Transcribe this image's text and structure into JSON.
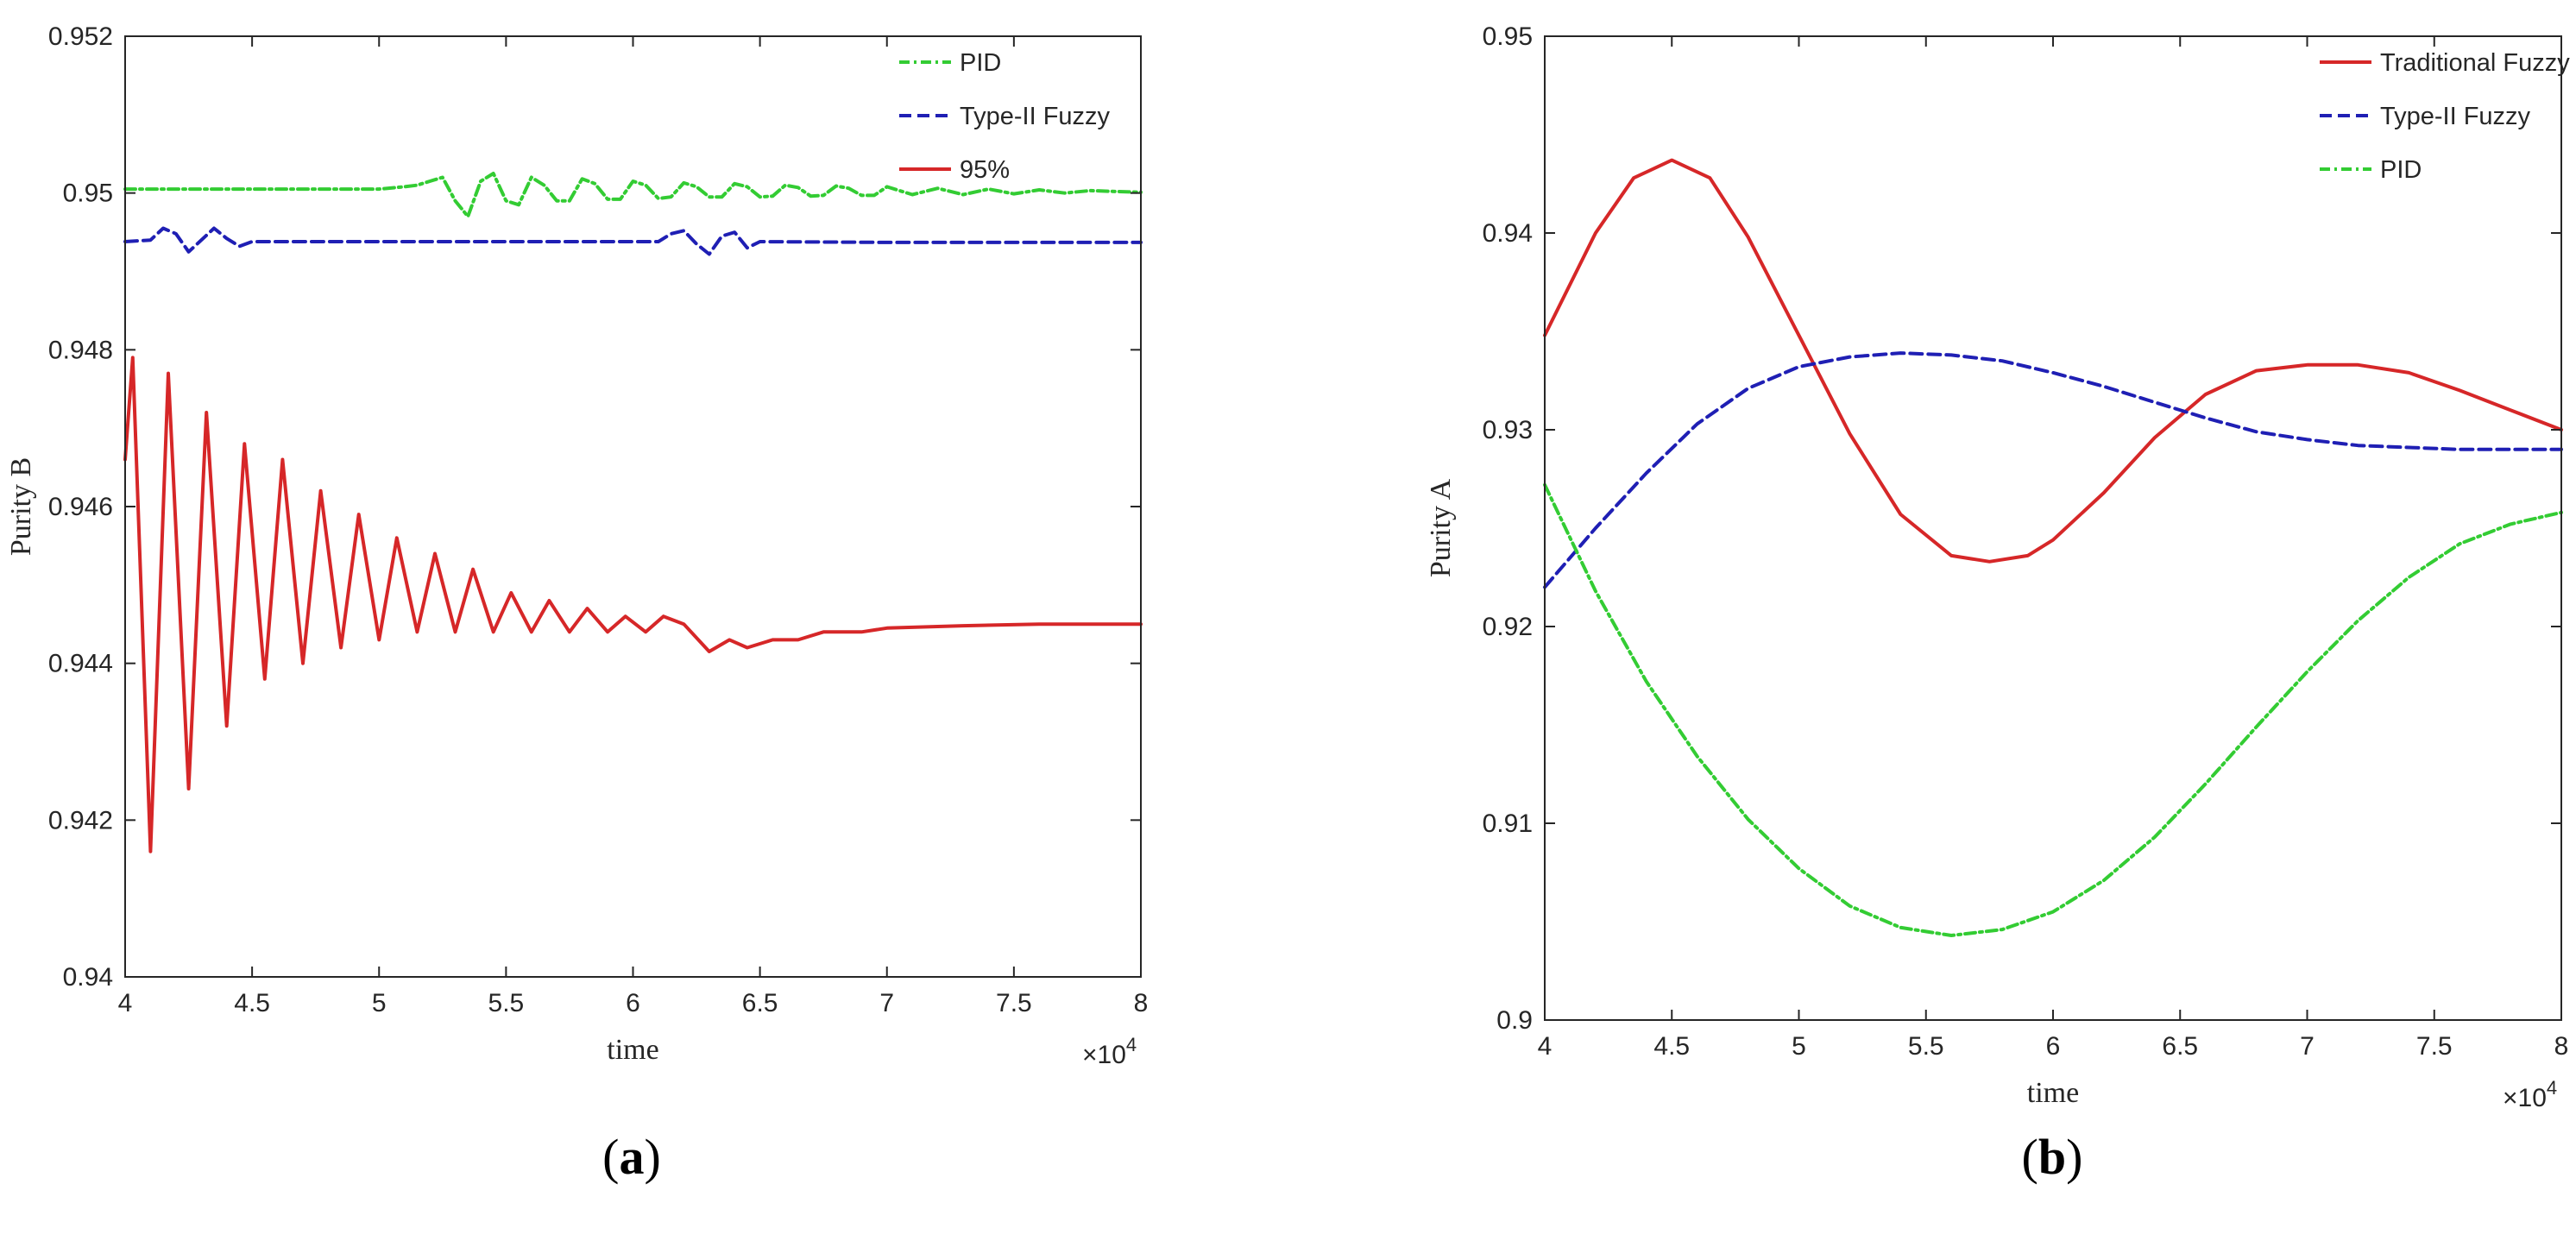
{
  "chart_data": [
    {
      "type": "line",
      "panel": "a",
      "caption_open": "(",
      "caption_letter": "a",
      "caption_close": ")",
      "xlabel": "time",
      "ylabel": "Purity B",
      "x_exponent_base": "×10",
      "x_exponent_power": "4",
      "xlim": [
        4,
        8
      ],
      "ylim": [
        0.94,
        0.952
      ],
      "xticks": [
        4,
        4.5,
        5,
        5.5,
        6,
        6.5,
        7,
        7.5,
        8
      ],
      "xtick_labels": [
        "4",
        "4.5",
        "5",
        "5.5",
        "6",
        "6.5",
        "7",
        "7.5",
        "8"
      ],
      "yticks": [
        0.94,
        0.942,
        0.944,
        0.946,
        0.948,
        0.95,
        0.952
      ],
      "ytick_labels": [
        "0.94",
        "0.942",
        "0.944",
        "0.946",
        "0.948",
        "0.95",
        "0.952"
      ],
      "legend_location": "top-right",
      "series": [
        {
          "name": "PID",
          "color": "#33cc33",
          "style": "dash-dot",
          "points": [
            [
              4.0,
              0.95005
            ],
            [
              4.5,
              0.95005
            ],
            [
              5.0,
              0.95005
            ],
            [
              5.1,
              0.95008
            ],
            [
              5.15,
              0.9501
            ],
            [
              5.2,
              0.95015
            ],
            [
              5.25,
              0.9502
            ],
            [
              5.3,
              0.9499
            ],
            [
              5.35,
              0.9497
            ],
            [
              5.4,
              0.95015
            ],
            [
              5.45,
              0.95025
            ],
            [
              5.5,
              0.9499
            ],
            [
              5.55,
              0.94985
            ],
            [
              5.6,
              0.9502
            ],
            [
              5.65,
              0.9501
            ],
            [
              5.7,
              0.9499
            ],
            [
              5.75,
              0.9499
            ],
            [
              5.8,
              0.95018
            ],
            [
              5.85,
              0.95012
            ],
            [
              5.9,
              0.94992
            ],
            [
              5.95,
              0.94992
            ],
            [
              6.0,
              0.95015
            ],
            [
              6.05,
              0.9501
            ],
            [
              6.1,
              0.94993
            ],
            [
              6.15,
              0.94995
            ],
            [
              6.2,
              0.95013
            ],
            [
              6.25,
              0.95008
            ],
            [
              6.3,
              0.94995
            ],
            [
              6.35,
              0.94995
            ],
            [
              6.4,
              0.95012
            ],
            [
              6.45,
              0.95008
            ],
            [
              6.5,
              0.94995
            ],
            [
              6.55,
              0.94996
            ],
            [
              6.6,
              0.9501
            ],
            [
              6.65,
              0.95007
            ],
            [
              6.7,
              0.94996
            ],
            [
              6.75,
              0.94997
            ],
            [
              6.8,
              0.95009
            ],
            [
              6.85,
              0.95006
            ],
            [
              6.9,
              0.94997
            ],
            [
              6.95,
              0.94997
            ],
            [
              7.0,
              0.95008
            ],
            [
              7.1,
              0.94998
            ],
            [
              7.2,
              0.95006
            ],
            [
              7.3,
              0.94998
            ],
            [
              7.4,
              0.95005
            ],
            [
              7.5,
              0.94999
            ],
            [
              7.6,
              0.95004
            ],
            [
              7.7,
              0.95
            ],
            [
              7.8,
              0.95003
            ],
            [
              8.0,
              0.95001
            ]
          ]
        },
        {
          "name": "Type-II Fuzzy",
          "color": "#1f1fb4",
          "style": "dashed",
          "points": [
            [
              4.0,
              0.94938
            ],
            [
              4.1,
              0.9494
            ],
            [
              4.15,
              0.94955
            ],
            [
              4.2,
              0.94948
            ],
            [
              4.25,
              0.94925
            ],
            [
              4.3,
              0.9494
            ],
            [
              4.35,
              0.94955
            ],
            [
              4.4,
              0.94942
            ],
            [
              4.45,
              0.94932
            ],
            [
              4.5,
              0.94938
            ],
            [
              5.0,
              0.94938
            ],
            [
              5.5,
              0.94938
            ],
            [
              6.0,
              0.94938
            ],
            [
              6.1,
              0.94938
            ],
            [
              6.15,
              0.94948
            ],
            [
              6.2,
              0.94952
            ],
            [
              6.25,
              0.94935
            ],
            [
              6.3,
              0.94922
            ],
            [
              6.35,
              0.94945
            ],
            [
              6.4,
              0.9495
            ],
            [
              6.45,
              0.9493
            ],
            [
              6.5,
              0.94938
            ],
            [
              7.0,
              0.94937
            ],
            [
              7.5,
              0.94937
            ],
            [
              8.0,
              0.94937
            ]
          ]
        },
        {
          "name": "95%",
          "color": "#d62728",
          "style": "solid",
          "points": [
            [
              4.0,
              0.9466
            ],
            [
              4.03,
              0.9479
            ],
            [
              4.1,
              0.9416
            ],
            [
              4.17,
              0.9477
            ],
            [
              4.25,
              0.9424
            ],
            [
              4.32,
              0.9472
            ],
            [
              4.4,
              0.9432
            ],
            [
              4.47,
              0.9468
            ],
            [
              4.55,
              0.9438
            ],
            [
              4.62,
              0.9466
            ],
            [
              4.7,
              0.944
            ],
            [
              4.77,
              0.9462
            ],
            [
              4.85,
              0.9442
            ],
            [
              4.92,
              0.9459
            ],
            [
              5.0,
              0.9443
            ],
            [
              5.07,
              0.9456
            ],
            [
              5.15,
              0.9444
            ],
            [
              5.22,
              0.9454
            ],
            [
              5.3,
              0.9444
            ],
            [
              5.37,
              0.9452
            ],
            [
              5.45,
              0.9444
            ],
            [
              5.52,
              0.9449
            ],
            [
              5.6,
              0.9444
            ],
            [
              5.67,
              0.9448
            ],
            [
              5.75,
              0.9444
            ],
            [
              5.82,
              0.9447
            ],
            [
              5.9,
              0.9444
            ],
            [
              5.97,
              0.9446
            ],
            [
              6.05,
              0.9444
            ],
            [
              6.12,
              0.9446
            ],
            [
              6.2,
              0.9445
            ],
            [
              6.3,
              0.94415
            ],
            [
              6.38,
              0.9443
            ],
            [
              6.45,
              0.9442
            ],
            [
              6.55,
              0.9443
            ],
            [
              6.65,
              0.9443
            ],
            [
              6.75,
              0.9444
            ],
            [
              6.9,
              0.9444
            ],
            [
              7.0,
              0.94445
            ],
            [
              7.3,
              0.94448
            ],
            [
              7.6,
              0.9445
            ],
            [
              8.0,
              0.9445
            ]
          ]
        }
      ]
    },
    {
      "type": "line",
      "panel": "b",
      "caption_open": "(",
      "caption_letter": "b",
      "caption_close": ")",
      "xlabel": "time",
      "ylabel": "Purity A",
      "x_exponent_base": "×10",
      "x_exponent_power": "4",
      "xlim": [
        4,
        8
      ],
      "ylim": [
        0.9,
        0.95
      ],
      "xticks": [
        4,
        4.5,
        5,
        5.5,
        6,
        6.5,
        7,
        7.5,
        8
      ],
      "xtick_labels": [
        "4",
        "4.5",
        "5",
        "5.5",
        "6",
        "6.5",
        "7",
        "7.5",
        "8"
      ],
      "yticks": [
        0.9,
        0.91,
        0.92,
        0.93,
        0.94,
        0.95
      ],
      "ytick_labels": [
        "0.9",
        "0.91",
        "0.92",
        "0.93",
        "0.94",
        "0.95"
      ],
      "legend_location": "top-right",
      "series": [
        {
          "name": "Traditional Fuzzy",
          "color": "#d62728",
          "style": "solid",
          "points": [
            [
              4.0,
              0.9348
            ],
            [
              4.2,
              0.94
            ],
            [
              4.35,
              0.9428
            ],
            [
              4.5,
              0.9437
            ],
            [
              4.65,
              0.9428
            ],
            [
              4.8,
              0.9398
            ],
            [
              5.0,
              0.9348
            ],
            [
              5.2,
              0.9298
            ],
            [
              5.4,
              0.9257
            ],
            [
              5.6,
              0.9236
            ],
            [
              5.75,
              0.9233
            ],
            [
              5.9,
              0.9236
            ],
            [
              6.0,
              0.9244
            ],
            [
              6.2,
              0.9268
            ],
            [
              6.4,
              0.9296
            ],
            [
              6.6,
              0.9318
            ],
            [
              6.8,
              0.933
            ],
            [
              7.0,
              0.9333
            ],
            [
              7.2,
              0.9333
            ],
            [
              7.4,
              0.9329
            ],
            [
              7.6,
              0.932
            ],
            [
              7.8,
              0.931
            ],
            [
              8.0,
              0.93
            ]
          ]
        },
        {
          "name": "Type-II Fuzzy",
          "color": "#1f1fb4",
          "style": "dashed",
          "points": [
            [
              4.0,
              0.922
            ],
            [
              4.2,
              0.925
            ],
            [
              4.4,
              0.9278
            ],
            [
              4.6,
              0.9303
            ],
            [
              4.8,
              0.9321
            ],
            [
              5.0,
              0.9332
            ],
            [
              5.2,
              0.9337
            ],
            [
              5.4,
              0.9339
            ],
            [
              5.6,
              0.9338
            ],
            [
              5.8,
              0.9335
            ],
            [
              6.0,
              0.9329
            ],
            [
              6.2,
              0.9322
            ],
            [
              6.4,
              0.9314
            ],
            [
              6.6,
              0.9306
            ],
            [
              6.8,
              0.9299
            ],
            [
              7.0,
              0.9295
            ],
            [
              7.2,
              0.9292
            ],
            [
              7.4,
              0.9291
            ],
            [
              7.6,
              0.929
            ],
            [
              8.0,
              0.929
            ]
          ]
        },
        {
          "name": "PID",
          "color": "#33cc33",
          "style": "dash-dot",
          "points": [
            [
              4.0,
              0.9272
            ],
            [
              4.2,
              0.9218
            ],
            [
              4.4,
              0.9172
            ],
            [
              4.6,
              0.9134
            ],
            [
              4.8,
              0.9102
            ],
            [
              5.0,
              0.9077
            ],
            [
              5.2,
              0.9058
            ],
            [
              5.4,
              0.9047
            ],
            [
              5.6,
              0.9043
            ],
            [
              5.8,
              0.9046
            ],
            [
              6.0,
              0.9055
            ],
            [
              6.2,
              0.9071
            ],
            [
              6.4,
              0.9093
            ],
            [
              6.6,
              0.912
            ],
            [
              6.8,
              0.9149
            ],
            [
              7.0,
              0.9177
            ],
            [
              7.2,
              0.9203
            ],
            [
              7.4,
              0.9225
            ],
            [
              7.6,
              0.9242
            ],
            [
              7.8,
              0.9252
            ],
            [
              8.0,
              0.9258
            ]
          ]
        }
      ]
    }
  ]
}
